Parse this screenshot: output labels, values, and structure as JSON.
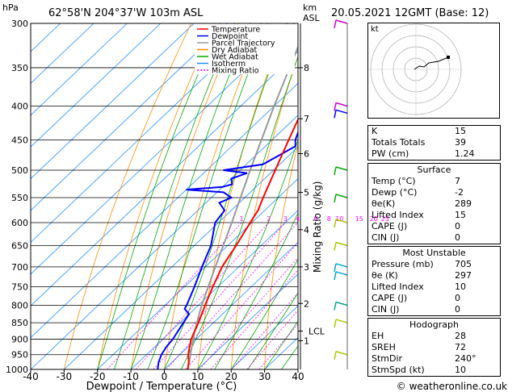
{
  "header": {
    "pressure_unit": "hPa",
    "location": "62°58'N  204°37'W  103m  ASL",
    "height_unit_km": "km",
    "height_unit_asl": "ASL",
    "datetime": "20.05.2021  12GMT  (Base: 12)"
  },
  "chart_data": {
    "type": "skew-t",
    "xlabel": "Dewpoint / Temperature (°C)",
    "ylabel_right": "Mixing Ratio (g/kg)",
    "xlim": [
      -40,
      40
    ],
    "ylim_hpa": [
      1000,
      300
    ],
    "x_ticks": [
      "-40",
      "-30",
      "-20",
      "-10",
      "0",
      "10",
      "20",
      "30",
      "40"
    ],
    "pressure_ticks": [
      "300",
      "350",
      "400",
      "450",
      "500",
      "550",
      "600",
      "650",
      "700",
      "750",
      "800",
      "850",
      "900",
      "950",
      "1000"
    ],
    "km_ticks": [
      {
        "p": 350,
        "label": "8"
      },
      {
        "p": 418,
        "label": "7"
      },
      {
        "p": 472,
        "label": "6"
      },
      {
        "p": 540,
        "label": "5"
      },
      {
        "p": 615,
        "label": "4"
      },
      {
        "p": 700,
        "label": "3"
      },
      {
        "p": 795,
        "label": "2"
      },
      {
        "p": 905,
        "label": "1"
      }
    ],
    "lcl": {
      "p": 875,
      "label": "LCL"
    },
    "mixing_ratio_labels": [
      "1",
      "2",
      "3",
      "4",
      "6",
      "8",
      "10",
      "15",
      "20",
      "25"
    ],
    "mixing_ratio_values": [
      1,
      2,
      3,
      4,
      6,
      8,
      10,
      15,
      20,
      25
    ],
    "legend": [
      {
        "name": "Temperature",
        "color": "#ff0000"
      },
      {
        "name": "Dewpoint",
        "color": "#0000ff"
      },
      {
        "name": "Parcel Trajectory",
        "color": "#999999"
      },
      {
        "name": "Dry Adiabat",
        "color": "#ff8c00"
      },
      {
        "name": "Wet Adiabat",
        "color": "#00aa00"
      },
      {
        "name": "Isotherm",
        "color": "#1e90ff"
      },
      {
        "name": "Mixing Ratio",
        "color": "#ff00ff"
      }
    ],
    "temperature": [
      [
        1000,
        7
      ],
      [
        975,
        5
      ],
      [
        950,
        2.5
      ],
      [
        925,
        0.5
      ],
      [
        900,
        -1.5
      ],
      [
        850,
        -4.5
      ],
      [
        800,
        -8
      ],
      [
        750,
        -11.5
      ],
      [
        700,
        -15
      ],
      [
        650,
        -17.5
      ],
      [
        600,
        -20.5
      ],
      [
        575,
        -22
      ],
      [
        550,
        -24.5
      ],
      [
        500,
        -29.5
      ],
      [
        450,
        -35
      ],
      [
        400,
        -41
      ],
      [
        350,
        -48
      ],
      [
        300,
        -55
      ]
    ],
    "dewpoint": [
      [
        1000,
        -2
      ],
      [
        975,
        -4
      ],
      [
        950,
        -5.5
      ],
      [
        925,
        -6.5
      ],
      [
        900,
        -7
      ],
      [
        850,
        -9
      ],
      [
        825,
        -10
      ],
      [
        810,
        -13
      ],
      [
        800,
        -13.5
      ],
      [
        750,
        -17
      ],
      [
        700,
        -21
      ],
      [
        650,
        -25
      ],
      [
        600,
        -31
      ],
      [
        575,
        -32
      ],
      [
        560,
        -36
      ],
      [
        550,
        -34
      ],
      [
        540,
        -38
      ],
      [
        535,
        -50
      ],
      [
        530,
        -40
      ],
      [
        525,
        -38
      ],
      [
        515,
        -40
      ],
      [
        505,
        -37
      ],
      [
        500,
        -45
      ],
      [
        490,
        -35
      ],
      [
        460,
        -31
      ],
      [
        450,
        -33
      ],
      [
        400,
        -40
      ],
      [
        350,
        -48
      ],
      [
        300,
        -56
      ]
    ],
    "parcel": [
      [
        1000,
        7
      ],
      [
        875,
        -3
      ],
      [
        800,
        -9
      ],
      [
        700,
        -17
      ],
      [
        600,
        -26
      ],
      [
        500,
        -37
      ],
      [
        400,
        -50
      ],
      [
        300,
        -66
      ]
    ]
  },
  "indices": {
    "rows": [
      {
        "label": "K",
        "value": "15"
      },
      {
        "label": "Totals Totals",
        "value": "39"
      },
      {
        "label": "PW (cm)",
        "value": "1.24"
      }
    ]
  },
  "surface": {
    "title": "Surface",
    "rows": [
      {
        "label": "Temp (°C)",
        "value": "7"
      },
      {
        "label": "Dewp (°C)",
        "value": "-2"
      },
      {
        "label": "θe(K)",
        "value": "289"
      },
      {
        "label": "Lifted Index",
        "value": "15"
      },
      {
        "label": "CAPE (J)",
        "value": "0"
      },
      {
        "label": "CIN (J)",
        "value": "0"
      }
    ]
  },
  "most_unstable": {
    "title": "Most Unstable",
    "rows": [
      {
        "label": "Pressure (mb)",
        "value": "705"
      },
      {
        "label": "θe (K)",
        "value": "297"
      },
      {
        "label": "Lifted Index",
        "value": "10"
      },
      {
        "label": "CAPE (J)",
        "value": "0"
      },
      {
        "label": "CIN (J)",
        "value": "0"
      }
    ]
  },
  "hodograph": {
    "title": "Hodograph",
    "unit": "kt",
    "rows": [
      {
        "label": "EH",
        "value": "28"
      },
      {
        "label": "SREH",
        "value": "72"
      },
      {
        "label": "StmDir",
        "value": "240°"
      },
      {
        "label": "StmSpd (kt)",
        "value": "10"
      }
    ]
  },
  "footer": {
    "copyright": "© weatheronline.co.uk"
  }
}
